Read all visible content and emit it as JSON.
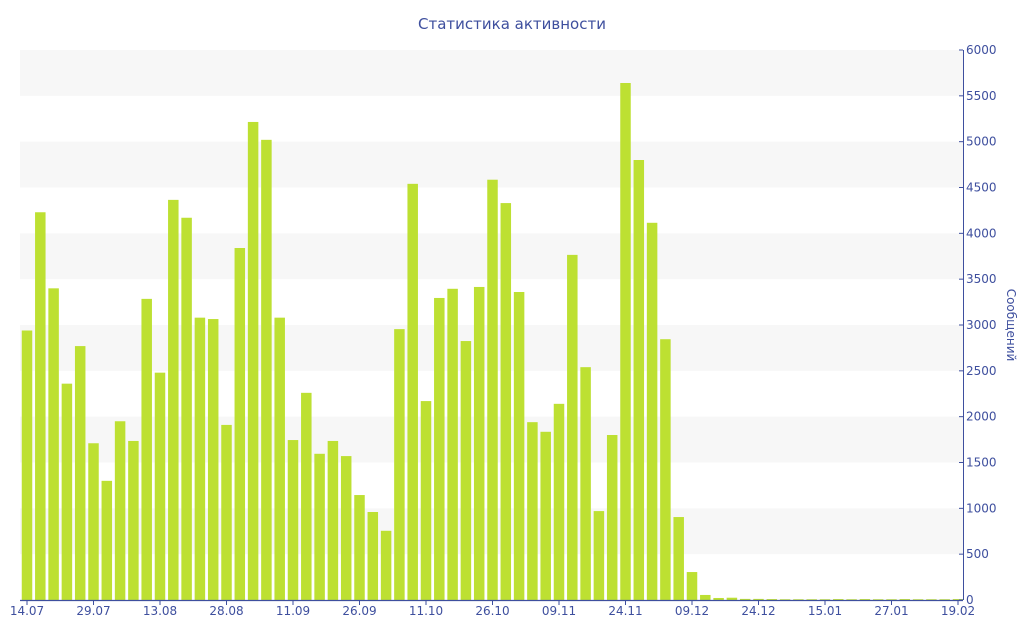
{
  "chart_data": {
    "type": "bar",
    "title": "Статистика активности",
    "xlabel": "",
    "ylabel": "Сообщений",
    "ylim": [
      0,
      6000
    ],
    "y_axis_position": "right",
    "yticks": [
      0,
      500,
      1000,
      1500,
      2000,
      2500,
      3000,
      3500,
      4000,
      4500,
      5000,
      5500,
      6000
    ],
    "xtick_labels": [
      "14.07",
      "29.07",
      "13.08",
      "28.08",
      "11.09",
      "26.09",
      "11.10",
      "26.10",
      "09.11",
      "24.11",
      "09.12",
      "24.12",
      "15.01",
      "27.01",
      "19.02"
    ],
    "xtick_every": 5,
    "grid": true,
    "values": [
      2940,
      4230,
      3400,
      2360,
      2770,
      1710,
      1300,
      1950,
      1735,
      3285,
      2480,
      4365,
      4170,
      3080,
      3065,
      1910,
      3840,
      5215,
      5020,
      3080,
      1745,
      2260,
      1595,
      1735,
      1570,
      1145,
      960,
      755,
      2955,
      4540,
      2170,
      3295,
      3395,
      2825,
      3415,
      4585,
      4330,
      3360,
      1940,
      1835,
      2140,
      3765,
      2540,
      970,
      1800,
      5640,
      4800,
      4115,
      2845,
      905,
      305,
      55,
      22,
      25,
      12,
      12,
      10,
      8,
      8,
      8,
      8,
      10,
      8,
      10,
      8,
      8,
      10,
      8,
      8,
      8,
      10
    ],
    "colors": {
      "bar": "#bde032",
      "axis": "#3e4f9e",
      "band": "#f7f7f7"
    }
  }
}
